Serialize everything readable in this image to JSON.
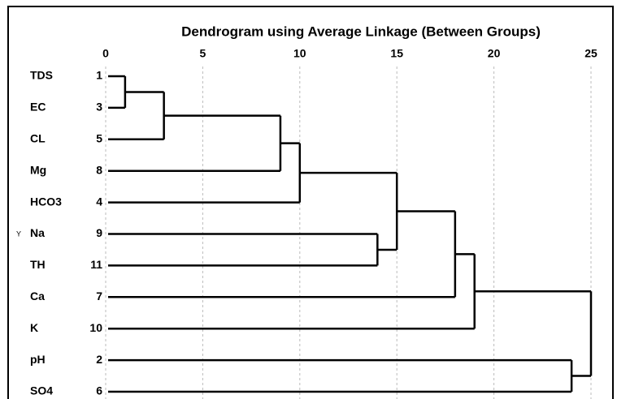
{
  "chart_data": {
    "type": "dendrogram",
    "title": "Dendrogram using Average Linkage (Between Groups)",
    "labels": [
      "TDS",
      "EC",
      "CL",
      "Mg",
      "HCO3",
      "Na",
      "TH",
      "Ca",
      "K",
      "pH",
      "SO4"
    ],
    "ids": [
      1,
      3,
      5,
      8,
      4,
      9,
      11,
      7,
      10,
      2,
      6
    ],
    "merges": [
      {
        "left": 0,
        "right": 1,
        "height": 1
      },
      {
        "left": 11,
        "right": 2,
        "height": 3
      },
      {
        "left": 12,
        "right": 3,
        "height": 9
      },
      {
        "left": 13,
        "right": 4,
        "height": 10
      },
      {
        "left": 5,
        "right": 6,
        "height": 14
      },
      {
        "left": 14,
        "right": 15,
        "height": 15
      },
      {
        "left": 16,
        "right": 7,
        "height": 18
      },
      {
        "left": 17,
        "right": 8,
        "height": 19
      },
      {
        "left": 9,
        "right": 10,
        "height": 24
      },
      {
        "left": 18,
        "right": 19,
        "height": 25
      }
    ],
    "y_marker": "Y",
    "xlim": [
      0,
      25
    ],
    "xticks": [
      0,
      5,
      10,
      15,
      20,
      25
    ],
    "grid": true,
    "color": "#000000"
  }
}
